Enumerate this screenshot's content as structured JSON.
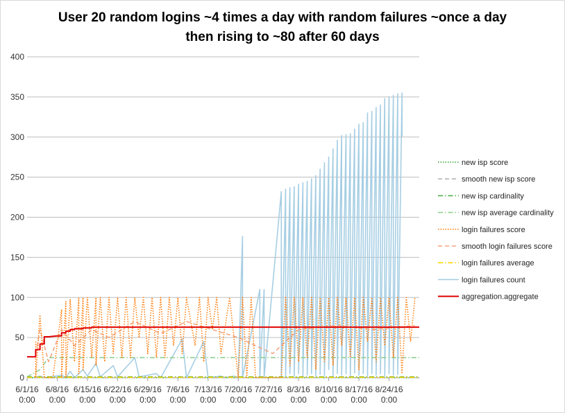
{
  "chart_data": {
    "type": "line",
    "title_line1": "User 20 random logins ~4 times a day with random failures ~once a day",
    "title_line2": "then rising to ~80 after 60 days",
    "xlabel": "",
    "ylabel": "",
    "ylim": [
      0,
      400
    ],
    "yticks": [
      0,
      50,
      100,
      150,
      200,
      250,
      300,
      350,
      400
    ],
    "x_start": "6/1/16",
    "x_end": "8/31/16",
    "xtick_labels": [
      {
        "date": "6/1/16",
        "time": "0:00"
      },
      {
        "date": "6/8/16",
        "time": "0:00"
      },
      {
        "date": "6/15/16",
        "time": "0:00"
      },
      {
        "date": "6/22/16",
        "time": "0:00"
      },
      {
        "date": "6/29/16",
        "time": "0:00"
      },
      {
        "date": "7/6/16",
        "time": "0:00"
      },
      {
        "date": "7/13/16",
        "time": "0:00"
      },
      {
        "date": "7/20/16",
        "time": "0:00"
      },
      {
        "date": "7/27/16",
        "time": "0:00"
      },
      {
        "date": "8/3/16",
        "time": "0:00"
      },
      {
        "date": "8/10/16",
        "time": "0:00"
      },
      {
        "date": "8/17/16",
        "time": "0:00"
      },
      {
        "date": "8/24/16",
        "time": "0:00"
      }
    ],
    "grid": true,
    "legend_position": "right",
    "series": [
      {
        "name": "new isp score",
        "color": "#2ca02c",
        "style": "dotted",
        "points": [
          [
            "6/1/16",
            0
          ],
          [
            "8/31/16",
            0
          ]
        ]
      },
      {
        "name": "smooth new isp score",
        "color": "#b5b5b5",
        "style": "dashed",
        "points": [
          [
            "6/1/16",
            0
          ],
          [
            "8/31/16",
            0
          ]
        ]
      },
      {
        "name": "new isp cardinality",
        "color": "#4daf4a",
        "style": "dashdot",
        "points": [
          [
            "6/1/16",
            1
          ],
          [
            "8/31/16",
            1
          ]
        ]
      },
      {
        "name": "new isp average cardinality",
        "color": "#8fd18f",
        "style": "dashdot",
        "points": [
          [
            "6/1/16",
            1
          ],
          [
            "6/4/16",
            10
          ],
          [
            "6/6/16",
            25
          ],
          [
            "8/31/16",
            25
          ]
        ]
      },
      {
        "name": "login failures score",
        "color": "#ff7f0e",
        "style": "dotted",
        "points": [
          [
            "6/3/16",
            45
          ],
          [
            "6/3/16",
            0
          ],
          [
            "6/4/16",
            78
          ],
          [
            "6/5/16",
            0
          ],
          [
            "6/7/16",
            0
          ],
          [
            "6/9/16",
            85
          ],
          [
            "6/9/16",
            0
          ],
          [
            "6/10/16",
            95
          ],
          [
            "6/10/16",
            0
          ],
          [
            "6/11/16",
            98
          ],
          [
            "6/12/16",
            20
          ],
          [
            "6/13/16",
            99
          ],
          [
            "6/13/16",
            5
          ],
          [
            "6/14/16",
            100
          ],
          [
            "6/14/16",
            10
          ],
          [
            "6/15/16",
            100
          ],
          [
            "6/16/16",
            25
          ],
          [
            "6/17/16",
            100
          ],
          [
            "6/17/16",
            15
          ],
          [
            "6/18/16",
            100
          ],
          [
            "6/19/16",
            20
          ],
          [
            "6/20/16",
            100
          ],
          [
            "6/21/16",
            30
          ],
          [
            "6/22/16",
            100
          ],
          [
            "6/23/16",
            25
          ],
          [
            "6/24/16",
            100
          ],
          [
            "6/25/16",
            25
          ],
          [
            "6/26/16",
            100
          ],
          [
            "6/27/16",
            50
          ],
          [
            "6/28/16",
            100
          ],
          [
            "6/29/16",
            30
          ],
          [
            "6/30/16",
            100
          ],
          [
            "7/1/16",
            25
          ],
          [
            "7/2/16",
            100
          ],
          [
            "7/3/16",
            25
          ],
          [
            "7/4/16",
            100
          ],
          [
            "7/5/16",
            40
          ],
          [
            "7/6/16",
            100
          ],
          [
            "7/7/16",
            30
          ],
          [
            "7/8/16",
            100
          ],
          [
            "7/10/16",
            40
          ],
          [
            "7/11/16",
            100
          ],
          [
            "7/12/16",
            20
          ],
          [
            "7/13/16",
            100
          ],
          [
            "7/14/16",
            60
          ],
          [
            "7/15/16",
            100
          ],
          [
            "7/16/16",
            30
          ],
          [
            "7/18/16",
            100
          ],
          [
            "7/20/16",
            0
          ],
          [
            "7/21/16",
            100
          ],
          [
            "7/22/16",
            0
          ],
          [
            "7/23/16",
            100
          ],
          [
            "7/24/16",
            0
          ],
          [
            "7/30/16",
            0
          ],
          [
            "7/31/16",
            100
          ],
          [
            "8/1/16",
            15
          ],
          [
            "8/2/16",
            100
          ],
          [
            "8/3/16",
            20
          ],
          [
            "8/4/16",
            100
          ],
          [
            "8/5/16",
            25
          ],
          [
            "8/6/16",
            100
          ],
          [
            "8/7/16",
            10
          ],
          [
            "8/8/16",
            100
          ],
          [
            "8/9/16",
            20
          ],
          [
            "8/10/16",
            100
          ],
          [
            "8/11/16",
            15
          ],
          [
            "8/12/16",
            100
          ],
          [
            "8/13/16",
            40
          ],
          [
            "8/14/16",
            100
          ],
          [
            "8/15/16",
            25
          ],
          [
            "8/16/16",
            100
          ],
          [
            "8/17/16",
            10
          ],
          [
            "8/18/16",
            100
          ],
          [
            "8/19/16",
            45
          ],
          [
            "8/20/16",
            100
          ],
          [
            "8/21/16",
            20
          ],
          [
            "8/22/16",
            100
          ],
          [
            "8/23/16",
            40
          ],
          [
            "8/24/16",
            100
          ],
          [
            "8/25/16",
            25
          ],
          [
            "8/26/16",
            100
          ],
          [
            "8/27/16",
            5
          ],
          [
            "8/28/16",
            100
          ],
          [
            "8/29/16",
            45
          ],
          [
            "8/30/16",
            100
          ]
        ]
      },
      {
        "name": "smooth login failures score",
        "color": "#f4a582",
        "style": "dashed",
        "points": [
          [
            "6/3/16",
            30
          ],
          [
            "6/4/16",
            60
          ],
          [
            "6/6/16",
            20
          ],
          [
            "6/9/16",
            60
          ],
          [
            "6/12/16",
            40
          ],
          [
            "6/16/16",
            60
          ],
          [
            "6/20/16",
            50
          ],
          [
            "6/26/16",
            70
          ],
          [
            "7/2/16",
            55
          ],
          [
            "7/8/16",
            70
          ],
          [
            "7/14/16",
            60
          ],
          [
            "7/20/16",
            50
          ],
          [
            "7/28/16",
            30
          ],
          [
            "8/3/16",
            60
          ],
          [
            "8/12/16",
            65
          ],
          [
            "8/20/16",
            60
          ],
          [
            "8/30/16",
            65
          ]
        ]
      },
      {
        "name": "login failures average",
        "color": "#ffd700",
        "style": "dashdot",
        "points": [
          [
            "6/1/16",
            0.5
          ],
          [
            "8/31/16",
            0.5
          ]
        ]
      },
      {
        "name": "login failures count",
        "color": "#a6cee3",
        "style": "solid",
        "points": [
          [
            "6/1/16",
            0
          ],
          [
            "6/3/16",
            0
          ],
          [
            "6/4/16",
            2
          ],
          [
            "6/5/16",
            0
          ],
          [
            "6/9/16",
            3
          ],
          [
            "6/10/16",
            0
          ],
          [
            "6/11/16",
            8
          ],
          [
            "6/12/16",
            0
          ],
          [
            "6/14/16",
            10
          ],
          [
            "6/15/16",
            2
          ],
          [
            "6/17/16",
            18
          ],
          [
            "6/18/16",
            1
          ],
          [
            "6/21/16",
            15
          ],
          [
            "6/22/16",
            1
          ],
          [
            "6/26/16",
            25
          ],
          [
            "6/27/16",
            1
          ],
          [
            "7/1/16",
            5
          ],
          [
            "7/2/16",
            0
          ],
          [
            "7/7/16",
            48
          ],
          [
            "7/8/16",
            0
          ],
          [
            "7/12/16",
            45
          ],
          [
            "7/13/16",
            0
          ],
          [
            "7/16/16",
            2
          ],
          [
            "7/17/16",
            0
          ],
          [
            "7/19/16",
            2
          ],
          [
            "7/20/16",
            0
          ],
          [
            "7/21/16",
            176
          ],
          [
            "7/21/16",
            0
          ],
          [
            "7/25/16",
            110
          ],
          [
            "7/25/16",
            0
          ],
          [
            "7/26/16",
            110
          ],
          [
            "7/26/16",
            0
          ],
          [
            "7/30/16",
            232
          ],
          [
            "7/30/16",
            0
          ],
          [
            "7/31/16",
            235
          ],
          [
            "7/31/16",
            0
          ],
          [
            "8/1/16",
            237
          ],
          [
            "8/1/16",
            5
          ],
          [
            "8/2/16",
            238
          ],
          [
            "8/2/16",
            2
          ],
          [
            "8/3/16",
            241
          ],
          [
            "8/3/16",
            5
          ],
          [
            "8/4/16",
            243
          ],
          [
            "8/4/16",
            2
          ],
          [
            "8/5/16",
            245
          ],
          [
            "8/5/16",
            3
          ],
          [
            "8/6/16",
            248
          ],
          [
            "8/6/16",
            5
          ],
          [
            "8/7/16",
            252
          ],
          [
            "8/7/16",
            2
          ],
          [
            "8/8/16",
            260
          ],
          [
            "8/8/16",
            4
          ],
          [
            "8/9/16",
            268
          ],
          [
            "8/9/16",
            2
          ],
          [
            "8/10/16",
            275
          ],
          [
            "8/10/16",
            10
          ],
          [
            "8/11/16",
            285
          ],
          [
            "8/11/16",
            2
          ],
          [
            "8/12/16",
            296
          ],
          [
            "8/12/16",
            5
          ],
          [
            "8/13/16",
            302
          ],
          [
            "8/13/16",
            3
          ],
          [
            "8/14/16",
            303
          ],
          [
            "8/14/16",
            5
          ],
          [
            "8/15/16",
            304
          ],
          [
            "8/15/16",
            2
          ],
          [
            "8/16/16",
            310
          ],
          [
            "8/16/16",
            6
          ],
          [
            "8/17/16",
            316
          ],
          [
            "8/17/16",
            3
          ],
          [
            "8/18/16",
            318
          ],
          [
            "8/18/16",
            5
          ],
          [
            "8/19/16",
            330
          ],
          [
            "8/19/16",
            2
          ],
          [
            "8/20/16",
            332
          ],
          [
            "8/20/16",
            5
          ],
          [
            "8/21/16",
            337
          ],
          [
            "8/21/16",
            3
          ],
          [
            "8/22/16",
            340
          ],
          [
            "8/22/16",
            5
          ],
          [
            "8/23/16",
            348
          ],
          [
            "8/23/16",
            2
          ],
          [
            "8/24/16",
            350
          ],
          [
            "8/24/16",
            5
          ],
          [
            "8/25/16",
            352
          ],
          [
            "8/25/16",
            3
          ],
          [
            "8/26/16",
            354
          ],
          [
            "8/26/16",
            4
          ],
          [
            "8/27/16",
            355
          ],
          [
            "8/27/16",
            300
          ]
        ]
      },
      {
        "name": "aggregation.aggregate",
        "color": "#e00000",
        "style": "solid",
        "points": [
          [
            "6/1/16",
            26
          ],
          [
            "6/3/16",
            26
          ],
          [
            "6/3/16",
            35
          ],
          [
            "6/4/16",
            35
          ],
          [
            "6/4/16",
            42
          ],
          [
            "6/5/16",
            42
          ],
          [
            "6/5/16",
            51
          ],
          [
            "6/6/16",
            51
          ],
          [
            "6/8/16",
            52
          ],
          [
            "6/9/16",
            52
          ],
          [
            "6/9/16",
            56
          ],
          [
            "6/10/16",
            56
          ],
          [
            "6/10/16",
            58
          ],
          [
            "6/11/16",
            58
          ],
          [
            "6/11/16",
            60
          ],
          [
            "6/12/16",
            60
          ],
          [
            "6/12/16",
            61
          ],
          [
            "6/14/16",
            61
          ],
          [
            "6/14/16",
            62
          ],
          [
            "6/16/16",
            62
          ],
          [
            "6/16/16",
            63
          ],
          [
            "8/31/16",
            63
          ]
        ]
      }
    ]
  }
}
